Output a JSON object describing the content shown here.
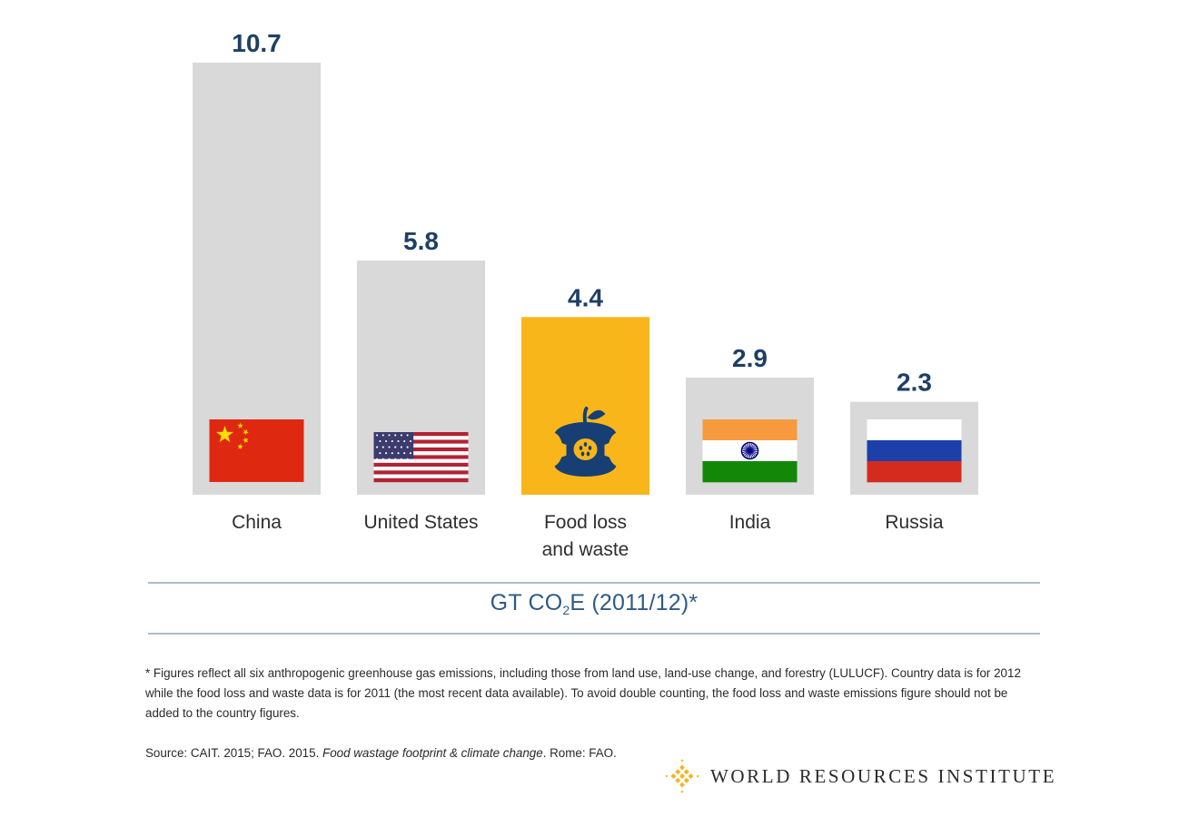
{
  "chart_data": {
    "type": "bar",
    "categories": [
      "China",
      "United States",
      "Food loss and waste",
      "India",
      "Russia"
    ],
    "category_lines": [
      [
        "China"
      ],
      [
        "United States"
      ],
      [
        "Food loss",
        "and waste"
      ],
      [
        "India"
      ],
      [
        "Russia"
      ]
    ],
    "values": [
      10.7,
      5.8,
      4.4,
      2.9,
      2.3
    ],
    "value_labels": [
      "10.7",
      "5.8",
      "4.4",
      "2.9",
      "2.3"
    ],
    "icons": [
      "china-flag-icon",
      "us-flag-icon",
      "apple-core-icon",
      "india-flag-icon",
      "russia-flag-icon"
    ],
    "highlight_index": 2,
    "colors": {
      "bar": "#d9d9d9",
      "highlight": "#f8b61b",
      "value_text": "#1e3f66",
      "highlight_icon": "#173f73"
    },
    "ylim": [
      0,
      10.7
    ],
    "grid": false,
    "legend": "none"
  },
  "unit_label": {
    "prefix": "GT CO",
    "subscript": "2",
    "suffix": "E (2011/12)*"
  },
  "footnote": "* Figures reflect all six anthropogenic greenhouse gas emissions, including those from land use, land-use change, and forestry (LULUCF).  Country data is for 2012 while the food loss and waste data is for 2011 (the most recent data available). To avoid double counting, the food loss and waste emissions figure should not be added to the country figures.",
  "source": {
    "prefix": "Source: CAIT. 2015; FAO. 2015. ",
    "title": "Food wastage footprint & climate change",
    "suffix": ". Rome: FAO."
  },
  "brand": {
    "name": "WORLD RESOURCES INSTITUTE",
    "logo_icon": "wri-logo-icon",
    "logo_color": "#f5b324"
  }
}
